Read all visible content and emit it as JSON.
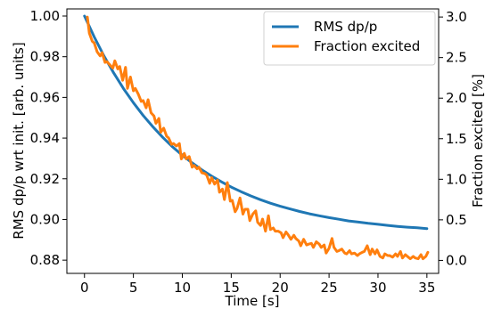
{
  "chart_data": {
    "type": "line",
    "xlabel": "Time [s]",
    "ylabel_left": "RMS dp/p wrt init. [arb. units]",
    "ylabel_right": "Fraction excited [%]",
    "xlim": [
      -1.8,
      36.2
    ],
    "ylim_left": [
      0.8735,
      1.0035
    ],
    "ylim_right": [
      -0.16,
      3.1
    ],
    "x_ticks": [
      0,
      5,
      10,
      15,
      20,
      25,
      30,
      35
    ],
    "x_tick_labels": [
      "0",
      "5",
      "10",
      "15",
      "20",
      "25",
      "30",
      "35"
    ],
    "y_left_ticks": [
      0.88,
      0.9,
      0.92,
      0.94,
      0.96,
      0.98,
      1.0
    ],
    "y_left_tick_labels": [
      "0.88",
      "0.90",
      "0.92",
      "0.94",
      "0.96",
      "0.98",
      "1.00"
    ],
    "y_right_ticks": [
      0.0,
      0.5,
      1.0,
      1.5,
      2.0,
      2.5,
      3.0
    ],
    "y_right_tick_labels": [
      "0.0",
      "0.5",
      "1.0",
      "1.5",
      "2.0",
      "2.5",
      "3.0"
    ],
    "grid": false,
    "legend_position": "top-right",
    "series": [
      {
        "name": "RMS dp/p",
        "axis": "left",
        "color": "#1f77b4",
        "x": [
          0,
          1,
          2,
          3,
          4,
          5,
          6,
          7,
          8,
          9,
          10,
          11,
          12,
          13,
          14,
          15,
          16,
          17,
          18,
          19,
          20,
          21,
          22,
          23,
          24,
          25,
          26,
          27,
          28,
          29,
          30,
          31,
          32,
          33,
          34,
          35
        ],
        "y": [
          1.0,
          0.9897,
          0.9803,
          0.9719,
          0.9643,
          0.9574,
          0.9511,
          0.9455,
          0.9404,
          0.9357,
          0.9316,
          0.9278,
          0.9244,
          0.9213,
          0.9185,
          0.9159,
          0.9137,
          0.9116,
          0.9097,
          0.908,
          0.9065,
          0.9052,
          0.9039,
          0.9028,
          0.9018,
          0.9009,
          0.9001,
          0.8993,
          0.8987,
          0.8981,
          0.8976,
          0.8971,
          0.8966,
          0.8962,
          0.8959,
          0.8955
        ]
      },
      {
        "name": "Fraction excited",
        "axis": "right",
        "color": "#ff7f0e",
        "x": [
          0.3,
          0.5,
          0.8,
          1.0,
          1.3,
          1.6,
          1.8,
          2.1,
          2.3,
          2.6,
          2.9,
          3.1,
          3.4,
          3.6,
          3.9,
          4.2,
          4.4,
          4.7,
          5.0,
          5.2,
          5.5,
          5.8,
          6.0,
          6.3,
          6.5,
          6.8,
          7.1,
          7.3,
          7.6,
          7.8,
          8.1,
          8.4,
          8.6,
          8.9,
          9.1,
          9.4,
          9.7,
          9.9,
          10.2,
          10.4,
          10.7,
          11.0,
          11.2,
          11.5,
          11.7,
          12.0,
          12.3,
          12.5,
          12.8,
          13.0,
          13.3,
          13.6,
          13.8,
          14.1,
          14.3,
          14.6,
          14.9,
          15.1,
          15.4,
          15.6,
          15.9,
          16.2,
          16.4,
          16.7,
          16.9,
          17.2,
          17.5,
          17.7,
          18.0,
          18.2,
          18.5,
          18.8,
          19.0,
          19.3,
          19.5,
          19.8,
          20.1,
          20.3,
          20.6,
          20.8,
          21.1,
          21.4,
          21.6,
          21.9,
          22.1,
          22.4,
          22.7,
          22.9,
          23.2,
          23.4,
          23.7,
          24.0,
          24.2,
          24.5,
          24.7,
          25.0,
          25.3,
          25.5,
          25.8,
          26.0,
          26.3,
          26.6,
          26.8,
          27.1,
          27.3,
          27.6,
          27.9,
          28.1,
          28.4,
          28.6,
          28.9,
          29.2,
          29.4,
          29.7,
          29.9,
          30.2,
          30.5,
          30.7,
          31.0,
          31.2,
          31.5,
          31.8,
          32.0,
          32.3,
          32.5,
          32.8,
          33.1,
          33.3,
          33.6,
          33.8,
          34.1,
          34.4,
          34.6,
          34.9,
          35.1
        ],
        "y": [
          3.0,
          2.8,
          2.7,
          2.68,
          2.57,
          2.52,
          2.56,
          2.44,
          2.45,
          2.41,
          2.37,
          2.46,
          2.36,
          2.39,
          2.22,
          2.38,
          2.12,
          2.26,
          2.09,
          2.12,
          2.05,
          1.96,
          1.97,
          1.88,
          1.98,
          1.82,
          1.78,
          1.69,
          1.75,
          1.58,
          1.63,
          1.53,
          1.51,
          1.43,
          1.44,
          1.41,
          1.44,
          1.25,
          1.32,
          1.25,
          1.28,
          1.15,
          1.17,
          1.13,
          1.15,
          1.08,
          1.07,
          1.05,
          0.95,
          1.02,
          0.94,
          0.99,
          0.84,
          0.88,
          0.75,
          0.96,
          0.73,
          0.74,
          0.6,
          0.64,
          0.77,
          0.57,
          0.63,
          0.63,
          0.49,
          0.57,
          0.61,
          0.47,
          0.43,
          0.51,
          0.36,
          0.55,
          0.38,
          0.4,
          0.36,
          0.36,
          0.34,
          0.28,
          0.35,
          0.32,
          0.26,
          0.31,
          0.27,
          0.24,
          0.18,
          0.26,
          0.19,
          0.2,
          0.21,
          0.16,
          0.23,
          0.2,
          0.16,
          0.19,
          0.09,
          0.15,
          0.27,
          0.16,
          0.11,
          0.12,
          0.14,
          0.09,
          0.08,
          0.12,
          0.08,
          0.09,
          0.06,
          0.08,
          0.1,
          0.11,
          0.18,
          0.07,
          0.14,
          0.08,
          0.13,
          0.05,
          0.03,
          0.08,
          0.06,
          0.06,
          0.04,
          0.08,
          0.05,
          0.11,
          0.03,
          0.07,
          0.04,
          0.02,
          0.05,
          0.03,
          0.02,
          0.07,
          0.02,
          0.05,
          0.1
        ]
      }
    ]
  }
}
